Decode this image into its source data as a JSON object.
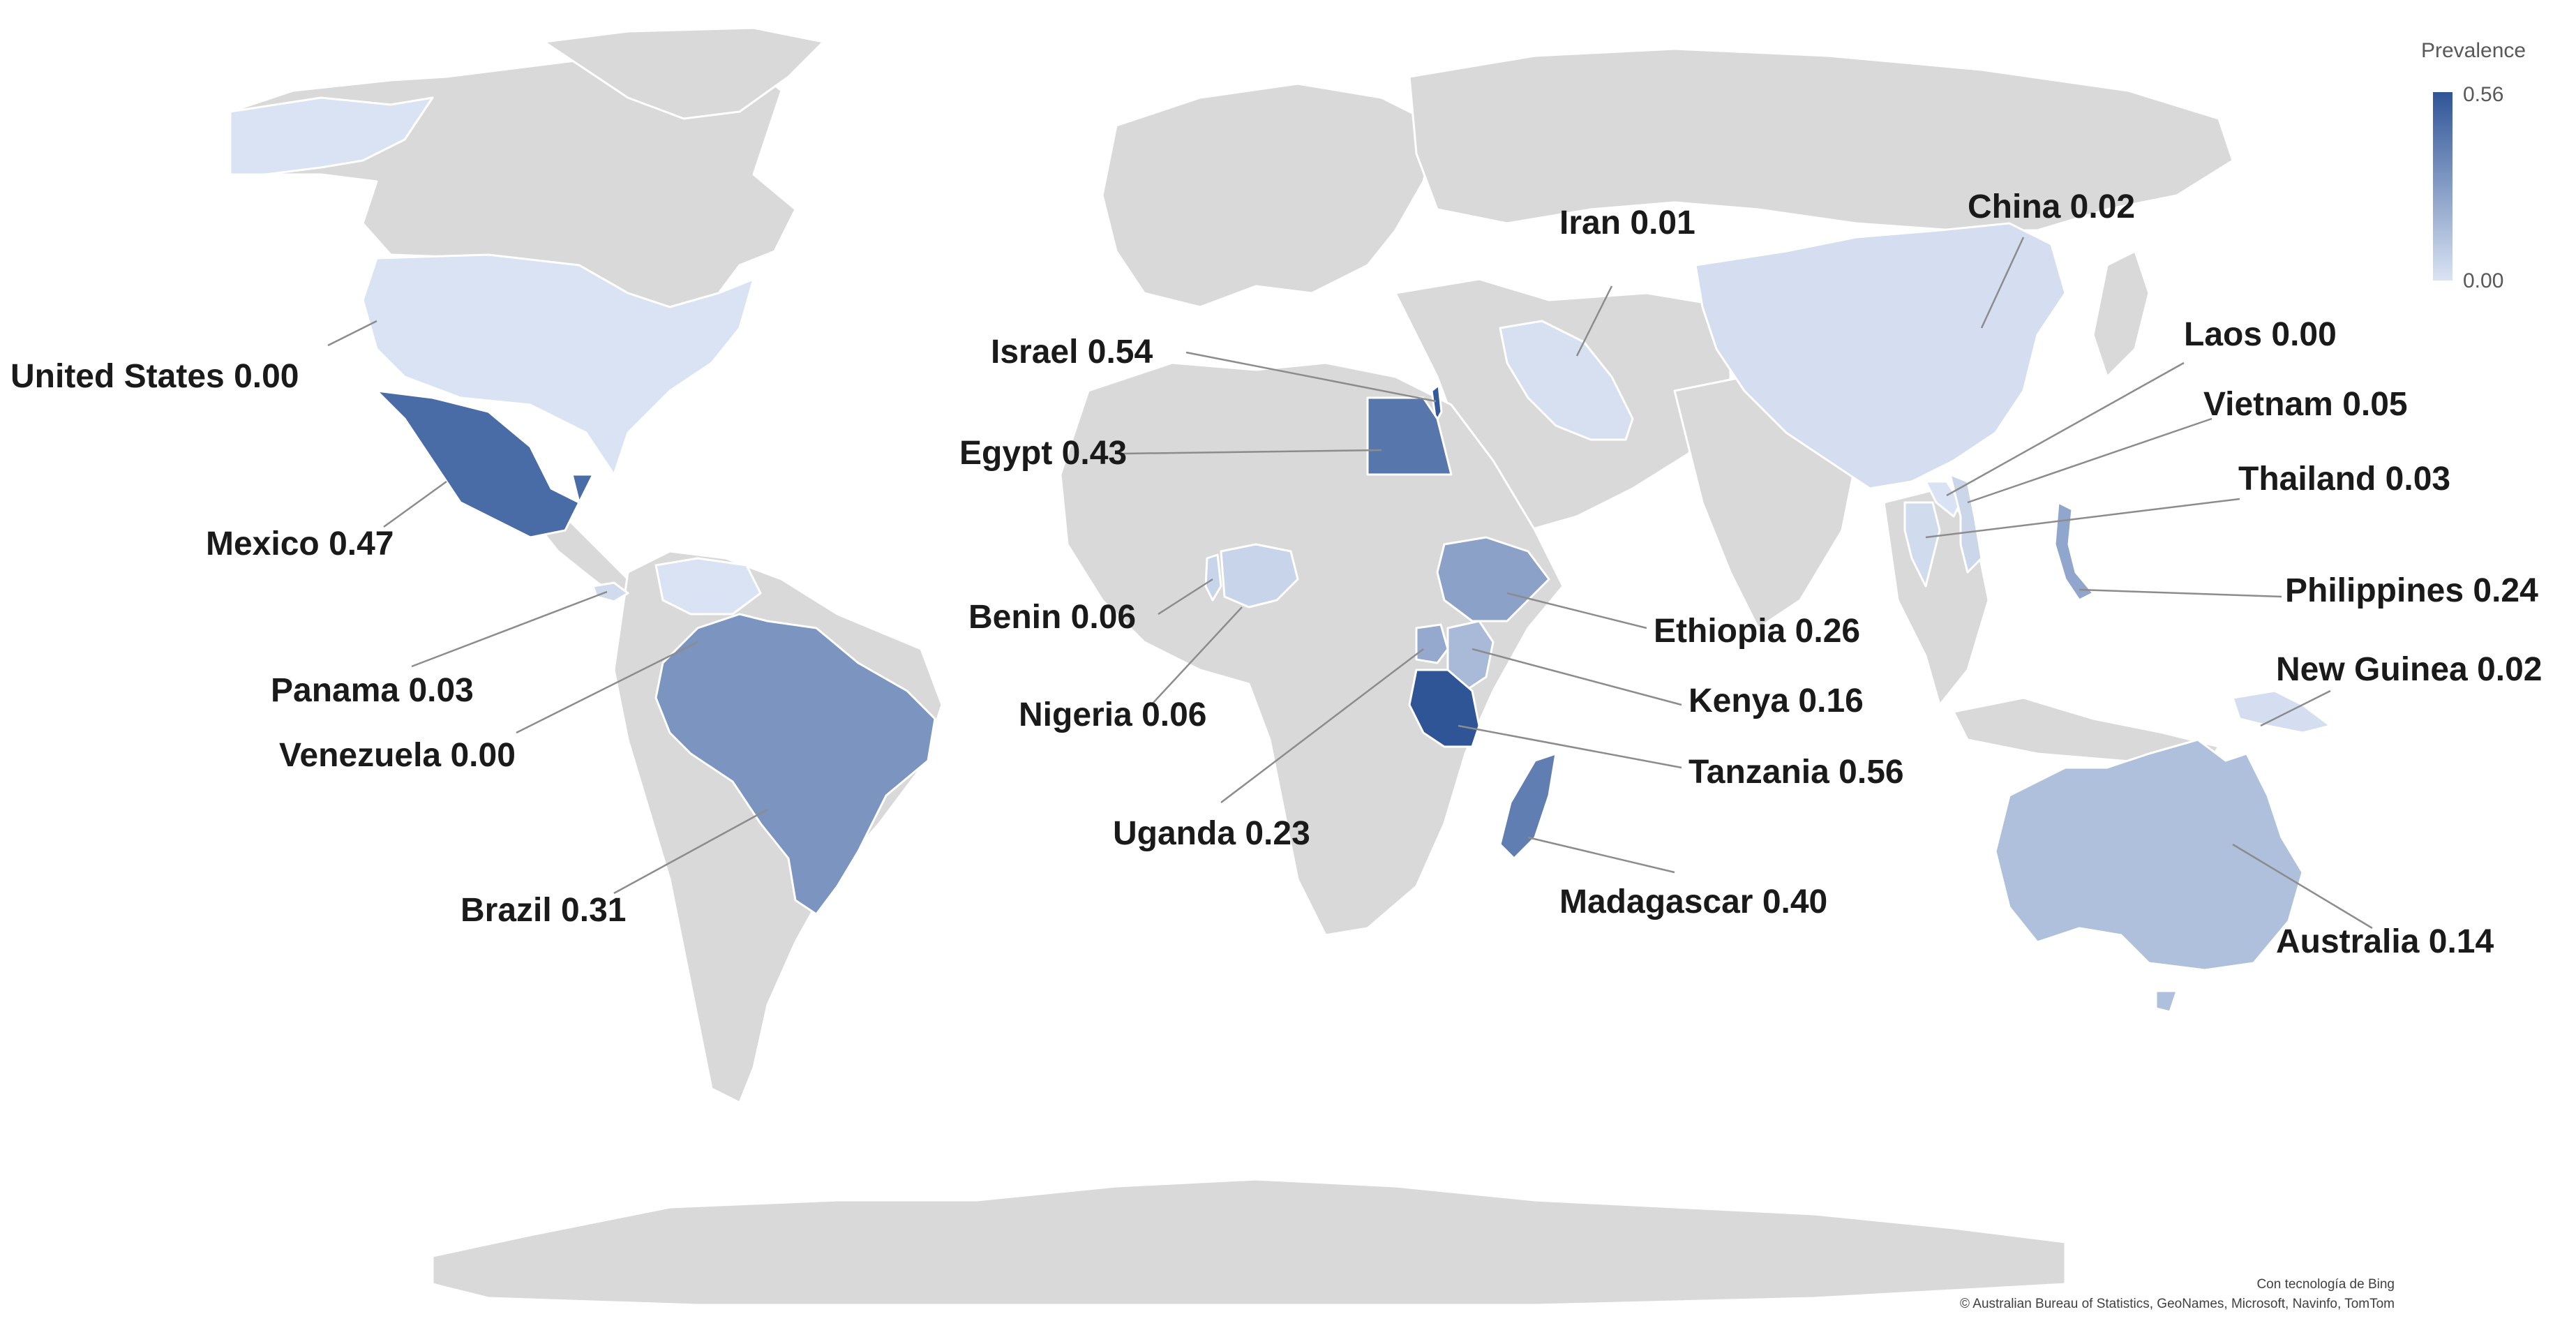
{
  "legend": {
    "title": "Prevalence",
    "max_label": "0.56",
    "min_label": "0.00",
    "min": 0.0,
    "max": 0.56,
    "color_low": "#dae3f3",
    "color_high": "#2f5597"
  },
  "base_land_color": "#d9d9d9",
  "countries": [
    {
      "id": "united-states",
      "label": "United States 0.00",
      "value": 0.0
    },
    {
      "id": "mexico",
      "label": "Mexico 0.47",
      "value": 0.47
    },
    {
      "id": "panama",
      "label": "Panama 0.03",
      "value": 0.03
    },
    {
      "id": "venezuela",
      "label": "Venezuela 0.00",
      "value": 0.0
    },
    {
      "id": "brazil",
      "label": "Brazil 0.31",
      "value": 0.31
    },
    {
      "id": "israel",
      "label": "Israel 0.54",
      "value": 0.54
    },
    {
      "id": "egypt",
      "label": "Egypt 0.43",
      "value": 0.43
    },
    {
      "id": "benin",
      "label": "Benin 0.06",
      "value": 0.06
    },
    {
      "id": "nigeria",
      "label": "Nigeria 0.06",
      "value": 0.06
    },
    {
      "id": "uganda",
      "label": "Uganda 0.23",
      "value": 0.23
    },
    {
      "id": "iran",
      "label": "Iran 0.01",
      "value": 0.01
    },
    {
      "id": "ethiopia",
      "label": "Ethiopia 0.26",
      "value": 0.26
    },
    {
      "id": "kenya",
      "label": "Kenya 0.16",
      "value": 0.16
    },
    {
      "id": "tanzania",
      "label": "Tanzania 0.56",
      "value": 0.56
    },
    {
      "id": "madagascar",
      "label": "Madagascar 0.40",
      "value": 0.4
    },
    {
      "id": "china",
      "label": "China 0.02",
      "value": 0.02
    },
    {
      "id": "laos",
      "label": "Laos 0.00",
      "value": 0.0
    },
    {
      "id": "vietnam",
      "label": "Vietnam 0.05",
      "value": 0.05
    },
    {
      "id": "thailand",
      "label": "Thailand 0.03",
      "value": 0.03
    },
    {
      "id": "philippines",
      "label": "Philippines 0.24",
      "value": 0.24
    },
    {
      "id": "new-guinea",
      "label": "New Guinea 0.02",
      "value": 0.02
    },
    {
      "id": "australia",
      "label": "Australia 0.14",
      "value": 0.14
    }
  ],
  "credits": {
    "line1": "Con tecnología de Bing",
    "line2": "© Australian Bureau of Statistics, GeoNames, Microsoft, Navinfo, TomTom"
  }
}
